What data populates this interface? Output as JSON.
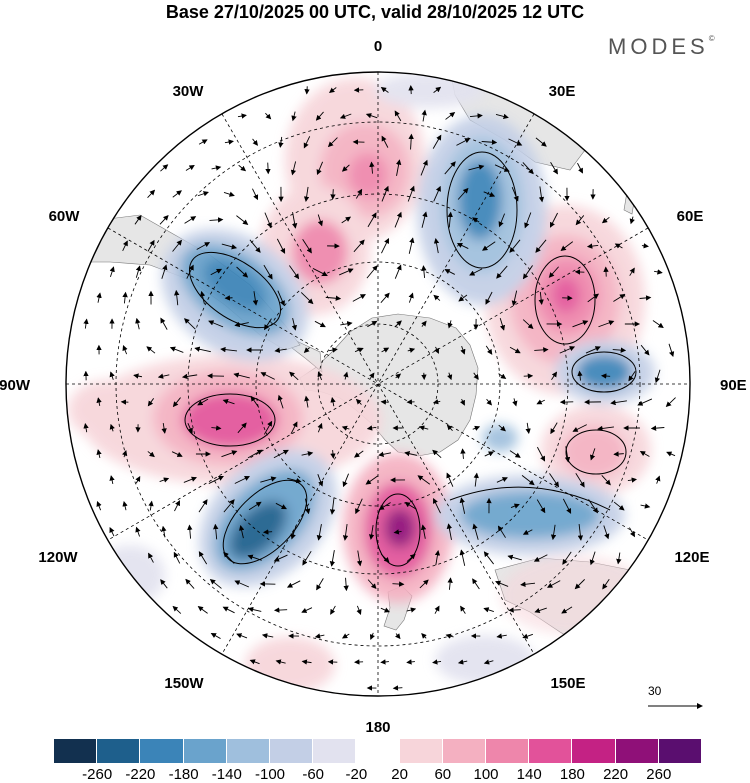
{
  "title": "Base 27/10/2025 00 UTC, valid 28/10/2025 12 UTC",
  "brand": "MODES",
  "brand_mark": "©",
  "longitude_labels": {
    "lon_0": "0",
    "lon_30e": "30E",
    "lon_60e": "60E",
    "lon_90e": "90E",
    "lon_120e": "120E",
    "lon_150e": "150E",
    "lon_180": "180",
    "lon_150w": "150W",
    "lon_120w": "120W",
    "lon_90w": "90W",
    "lon_60w": "60W",
    "lon_30w": "30W"
  },
  "reference_vector_label": "30",
  "colorbar": {
    "colors": [
      "#12304f",
      "#1e5f8c",
      "#3b84b8",
      "#6aa3cc",
      "#9fbfdd",
      "#c3cfe6",
      "#e2e2ef",
      "#ffffff",
      "#f7d5da",
      "#f4b0c1",
      "#ee86ab",
      "#e2529a",
      "#c42284",
      "#8f1078",
      "#5a0e6f"
    ],
    "ticks": [
      "-260",
      "-220",
      "-180",
      "-140",
      "-100",
      "-60",
      "-20",
      "20",
      "60",
      "100",
      "140",
      "180",
      "220",
      "260"
    ]
  },
  "colors": {
    "land": "#e6e6e6",
    "grid": "#000000"
  }
}
